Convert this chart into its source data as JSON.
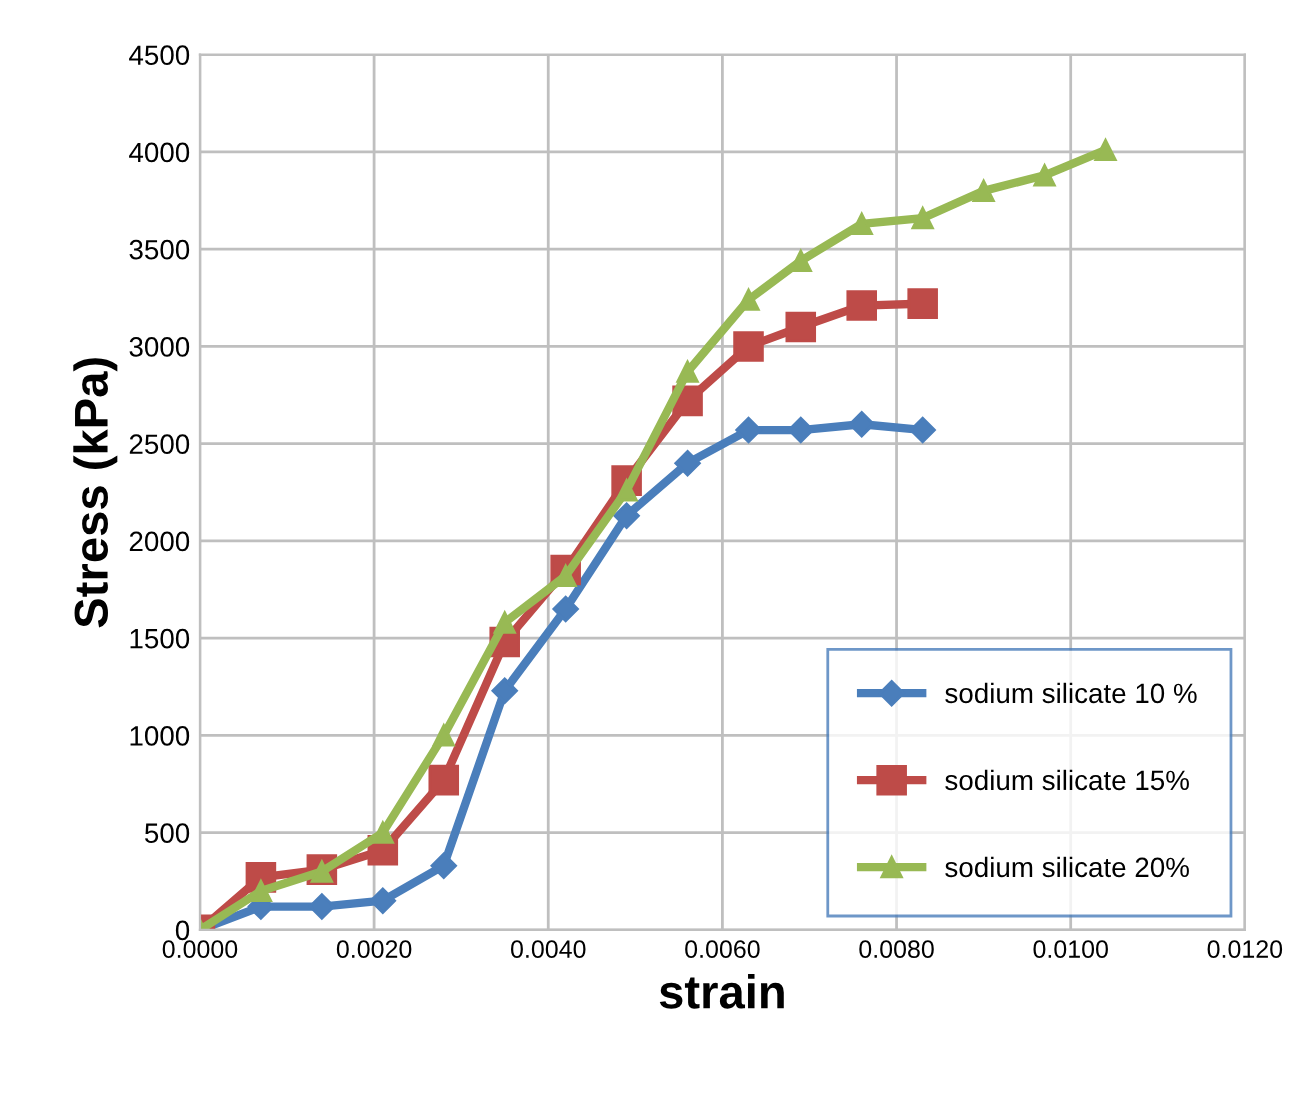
{
  "chart_data": {
    "type": "line",
    "xlabel": "strain",
    "ylabel": "Stress (kPa)",
    "x": [
      0,
      0.0007,
      0.0014,
      0.0021,
      0.0028,
      0.0035,
      0.0042,
      0.0049,
      0.0056,
      0.0063,
      0.0069,
      0.0076,
      0.0083,
      0.009,
      0.0097,
      0.0104
    ],
    "series": [
      {
        "name": "sodium silicate 10 %",
        "color": "#4a7ebb",
        "marker": "diamond",
        "values": [
          0,
          120,
          120,
          150,
          330,
          1230,
          1650,
          2130,
          2400,
          2570,
          2570,
          2600,
          2570,
          null,
          null,
          null
        ]
      },
      {
        "name": "sodium silicate 15%",
        "color": "#be4b48",
        "marker": "square",
        "values": [
          0,
          270,
          310,
          410,
          770,
          1480,
          1850,
          2310,
          2720,
          3000,
          3100,
          3210,
          3220,
          null,
          null,
          null
        ]
      },
      {
        "name": "sodium silicate 20%",
        "color": "#98b954",
        "marker": "triangle",
        "values": [
          0,
          200,
          300,
          500,
          1000,
          1580,
          1820,
          2260,
          2870,
          3240,
          3440,
          3630,
          3660,
          3800,
          3880,
          4010
        ]
      }
    ],
    "xlim": [
      0,
      0.012
    ],
    "xticks": [
      {
        "value": 0,
        "label": "0.0000"
      },
      {
        "value": 0.002,
        "label": "0.0020"
      },
      {
        "value": 0.004,
        "label": "0.0040"
      },
      {
        "value": 0.006,
        "label": "0.0060"
      },
      {
        "value": 0.008,
        "label": "0.0080"
      },
      {
        "value": 0.01,
        "label": "0.0100"
      },
      {
        "value": 0.012,
        "label": "0.0120"
      }
    ],
    "ylim": [
      0,
      4500
    ],
    "yticks": [
      0,
      500,
      1000,
      1500,
      2000,
      2500,
      3000,
      3500,
      4000,
      4500
    ],
    "grid": true,
    "legend": "bottom right",
    "line_style": "solid"
  }
}
